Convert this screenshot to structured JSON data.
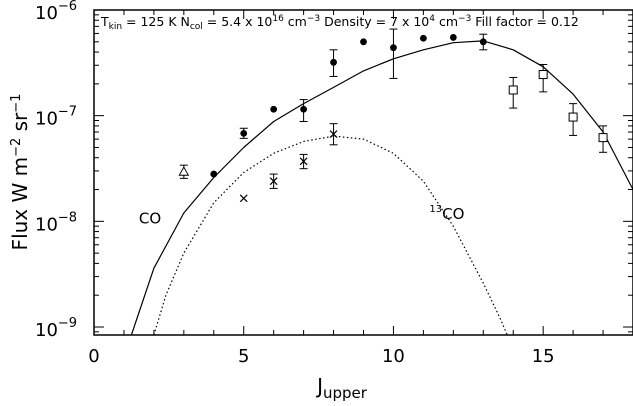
{
  "chart_data": {
    "type": "scatter",
    "title": "",
    "params": {
      "t_main": "T",
      "t_sub": "kin",
      "t_val": " = 125 K N",
      "n_sub": "col",
      "n_val": " = 5.4 x 10",
      "n_exp": "16",
      "n_unit": " cm",
      "n_unit_exp": "−3",
      "d_val": " Density = 7 x 10",
      "d_exp": "4",
      "d_unit": " cm",
      "d_unit_exp": "−3",
      "fill": " Fill factor = 0.12"
    },
    "xlabel": {
      "main": "J",
      "sub": "upper"
    },
    "ylabel": {
      "p1": "Flux W m",
      "e1": "−2",
      "p2": " sr",
      "e2": "−1"
    },
    "xlim": [
      0,
      18
    ],
    "ylim": [
      8.4e-10,
      1e-06
    ],
    "yscale": "log",
    "xticks": [
      {
        "value": 0,
        "label": "0"
      },
      {
        "value": 5,
        "label": "5"
      },
      {
        "value": 10,
        "label": "10"
      },
      {
        "value": 15,
        "label": "15"
      }
    ],
    "yticks": [
      {
        "value": 1e-09,
        "base": "10",
        "exp": "−9"
      },
      {
        "value": 1e-08,
        "base": "10",
        "exp": "−8"
      },
      {
        "value": 1e-07,
        "base": "10",
        "exp": "−7"
      },
      {
        "value": 1e-06,
        "base": "10",
        "exp": "−6"
      }
    ],
    "series": [
      {
        "name": "CO",
        "kind": "line",
        "style": "solid",
        "color": "#000000",
        "label": "CO",
        "label_at": [
          1.5,
          9.5e-09
        ],
        "points": [
          [
            1.25,
            8.4e-10
          ],
          [
            2,
            3.6e-09
          ],
          [
            3,
            1.2e-08
          ],
          [
            4,
            2.6e-08
          ],
          [
            5,
            5e-08
          ],
          [
            6,
            8.8e-08
          ],
          [
            7,
            1.3e-07
          ],
          [
            8,
            1.85e-07
          ],
          [
            9,
            2.65e-07
          ],
          [
            10,
            3.45e-07
          ],
          [
            11,
            4.2e-07
          ],
          [
            12,
            4.9e-07
          ],
          [
            13,
            5.1e-07
          ],
          [
            14,
            4.2e-07
          ],
          [
            15,
            2.9e-07
          ],
          [
            16,
            1.6e-07
          ],
          [
            17,
            7e-08
          ],
          [
            18,
            2e-08
          ]
        ]
      },
      {
        "name": "13CO",
        "kind": "line",
        "style": "dotted",
        "color": "#000000",
        "label_sup": "13",
        "label": "CO",
        "label_at": [
          11.2,
          1.05e-08
        ],
        "points": [
          [
            2.0,
            8.4e-10
          ],
          [
            2.4,
            2e-09
          ],
          [
            3,
            5e-09
          ],
          [
            4,
            1.5e-08
          ],
          [
            5,
            2.9e-08
          ],
          [
            6,
            4.4e-08
          ],
          [
            7,
            5.7e-08
          ],
          [
            8,
            6.4e-08
          ],
          [
            9,
            6e-08
          ],
          [
            10,
            4.4e-08
          ],
          [
            11,
            2.4e-08
          ],
          [
            12,
            9e-09
          ],
          [
            13,
            2.6e-09
          ],
          [
            13.6,
            1.15e-09
          ],
          [
            13.8,
            8.4e-10
          ]
        ]
      },
      {
        "name": "CO observed",
        "kind": "points",
        "marker": "filled-circle",
        "points": [
          {
            "x": 4,
            "y": 2.8e-08
          },
          {
            "x": 5,
            "y": 6.8e-08,
            "err": [
              6.1e-08,
              7.6e-08
            ]
          },
          {
            "x": 6,
            "y": 1.15e-07
          },
          {
            "x": 7,
            "y": 1.15e-07,
            "err": [
              8.8e-08,
              1.42e-07
            ]
          },
          {
            "x": 8,
            "y": 3.2e-07,
            "err": [
              2.35e-07,
              4.2e-07
            ]
          },
          {
            "x": 9,
            "y": 5e-07
          },
          {
            "x": 10,
            "y": 4.4e-07,
            "err": [
              2.25e-07,
              6.6e-07
            ]
          },
          {
            "x": 11,
            "y": 5.4e-07
          },
          {
            "x": 12,
            "y": 5.5e-07
          },
          {
            "x": 13,
            "y": 5e-07,
            "err": [
              4.2e-07,
              5.9e-07
            ]
          }
        ]
      },
      {
        "name": "CO observed (triangle)",
        "kind": "points",
        "marker": "open-triangle",
        "points": [
          {
            "x": 3,
            "y": 2.95e-08,
            "err": [
              2.55e-08,
              3.4e-08
            ]
          }
        ]
      },
      {
        "name": "13CO observed",
        "kind": "points",
        "marker": "cross",
        "points": [
          {
            "x": 5,
            "y": 1.65e-08
          },
          {
            "x": 6,
            "y": 2.4e-08,
            "err": [
              2.05e-08,
              2.8e-08
            ]
          },
          {
            "x": 7,
            "y": 3.7e-08,
            "err": [
              3.15e-08,
              4.3e-08
            ]
          },
          {
            "x": 8,
            "y": 6.7e-08,
            "err": [
              5.3e-08,
              8.4e-08
            ]
          }
        ]
      },
      {
        "name": "CO observed (squares)",
        "kind": "points",
        "marker": "open-square",
        "points": [
          {
            "x": 14,
            "y": 1.75e-07,
            "err": [
              1.18e-07,
              2.3e-07
            ]
          },
          {
            "x": 15,
            "y": 2.45e-07,
            "err": [
              1.68e-07,
              3.05e-07
            ]
          },
          {
            "x": 16,
            "y": 9.7e-08,
            "err": [
              6.5e-08,
              1.3e-07
            ]
          },
          {
            "x": 17,
            "y": 6.2e-08,
            "err": [
              4.5e-08,
              8e-08
            ]
          }
        ]
      }
    ]
  }
}
